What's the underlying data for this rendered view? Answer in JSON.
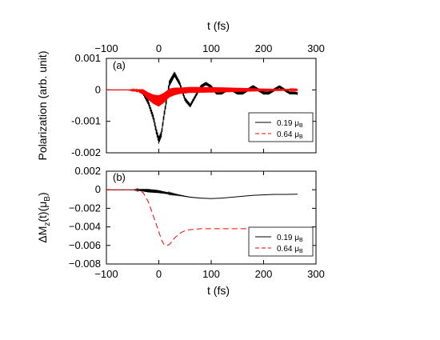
{
  "chart_data": [
    {
      "panel": "(a)",
      "type": "line",
      "xlabel": "t (fs)",
      "ylabel": "Polarization (arb. unit)",
      "xlim": [
        -100,
        300
      ],
      "ylim": [
        -0.002,
        0.001
      ],
      "x_ticks": [
        "−100",
        "0",
        "100",
        "200",
        "300"
      ],
      "x_tick_values": [
        -100,
        0,
        100,
        200,
        300
      ],
      "y_ticks": [
        "0.001",
        "0",
        "-0.001",
        "-0.002"
      ],
      "y_tick_values": [
        0.001,
        0,
        -0.001,
        -0.002
      ],
      "x_axis_position": "top",
      "legend": {
        "placement": "lower-right",
        "entries": [
          {
            "value": "0.19",
            "unit": "μ",
            "unit_sub": "B",
            "color": "#000000",
            "dash": "solid"
          },
          {
            "value": "0.64",
            "unit": "μ",
            "unit_sub": "B",
            "color": "#ff0000",
            "dash": "dashed"
          }
        ]
      },
      "series": [
        {
          "color": "#000000",
          "style": "solid",
          "envelope_center": {
            "x": [
              -100,
              -60,
              -40,
              -30,
              -20,
              -10,
              -5,
              0,
              5,
              10,
              20,
              30,
              40,
              50,
              60,
              70,
              80,
              90,
              100,
              110,
              120,
              130,
              140,
              150,
              160,
              170,
              180,
              190,
              200,
              210,
              220,
              230,
              240,
              250,
              260,
              265
            ],
            "y": [
              0,
              0,
              -2e-05,
              -0.0001,
              -0.0004,
              -0.0009,
              -0.0013,
              -0.0016,
              -0.0014,
              -0.0008,
              0.0002,
              0.0005,
              0.0002,
              -0.0003,
              -0.0005,
              -0.0002,
              0.0001,
              0.0002,
              0.0001,
              -0.0001,
              -0.0001,
              0.0,
              0.0,
              -0.0001,
              -0.0001,
              0.0,
              0.0001,
              0.0,
              -0.0001,
              -0.0001,
              0.0,
              0.0001,
              0.0,
              -0.0001,
              -0.0001,
              -0.00012
            ]
          },
          "oscillation_amplitude": {
            "x": [
              -100,
              -50,
              -40,
              -20,
              0,
              20,
              40,
              60,
              100,
              150,
              200,
              265
            ],
            "y": [
              0,
              0,
              3e-05,
              8e-05,
              0.00011,
              0.0001,
              7e-05,
              6e-05,
              5e-05,
              5e-05,
              5e-05,
              4e-05
            ]
          }
        },
        {
          "color": "#ff0000",
          "style": "dashed",
          "envelope_center": {
            "x": [
              -100,
              -60,
              -40,
              -30,
              -20,
              -10,
              0,
              10,
              20,
              30,
              40,
              60,
              80,
              100,
              130,
              160,
              200,
              240,
              265
            ],
            "y": [
              0,
              0,
              -2e-05,
              -6e-05,
              -0.0002,
              -0.0003,
              -0.00035,
              -0.00025,
              -0.0001,
              -5e-05,
              -3e-05,
              0,
              0,
              0,
              0,
              0,
              0,
              0,
              0
            ]
          },
          "oscillation_amplitude": {
            "x": [
              -100,
              -60,
              -40,
              -20,
              0,
              20,
              40,
              80,
              120,
              160,
              200,
              240,
              265
            ],
            "y": [
              0,
              0,
              4e-05,
              0.00012,
              0.00018,
              0.00014,
              0.0001,
              9e-05,
              8e-05,
              6e-05,
              4e-05,
              3e-05,
              2e-05
            ]
          }
        }
      ]
    },
    {
      "panel": "(b)",
      "type": "line",
      "xlabel": "t (fs)",
      "ylabel": {
        "prefix": "ΔM",
        "sub": "z",
        "middle": "(t)(μ",
        "sub2": "B",
        "suffix": ")"
      },
      "xlim": [
        -100,
        300
      ],
      "ylim": [
        -0.008,
        0.002
      ],
      "x_ticks": [
        "−100",
        "0",
        "100",
        "200",
        "300"
      ],
      "x_tick_values": [
        -100,
        0,
        100,
        200,
        300
      ],
      "y_ticks": [
        "0.002",
        "0",
        "−0.002",
        "−0.004",
        "−0.006",
        "−0.008"
      ],
      "y_tick_values": [
        0.002,
        0,
        -0.002,
        -0.004,
        -0.006,
        -0.008
      ],
      "x_axis_position": "bottom",
      "legend": {
        "placement": "lower-right",
        "entries": [
          {
            "value": "0.19",
            "unit": "μ",
            "unit_sub": "B",
            "color": "#000000",
            "dash": "solid"
          },
          {
            "value": "0.64",
            "unit": "μ",
            "unit_sub": "B",
            "color": "#ff0000",
            "dash": "dashed"
          }
        ]
      },
      "series": [
        {
          "color": "#000000",
          "style": "solid",
          "points": {
            "x": [
              -100,
              -60,
              -40,
              -30,
              -20,
              -10,
              0,
              10,
              20,
              40,
              60,
              80,
              100,
              120,
              140,
              160,
              180,
              200,
              220,
              240,
              265
            ],
            "y": [
              0,
              0,
              -2e-05,
              -5e-05,
              -0.0001,
              -0.00015,
              -0.0002,
              -0.0003,
              -0.0004,
              -0.0006,
              -0.0008,
              -0.0009,
              -0.00095,
              -0.0009,
              -0.0008,
              -0.0007,
              -0.0006,
              -0.00055,
              -0.0005,
              -0.0005,
              -0.00048
            ]
          },
          "oscillation_amplitude": {
            "x": [
              -100,
              -50,
              -40,
              -20,
              0,
              20,
              40,
              60,
              100,
              265
            ],
            "y": [
              0,
              0,
              8e-05,
              0.00018,
              0.00015,
              8e-05,
              3e-05,
              1e-05,
              0,
              0
            ]
          }
        },
        {
          "color": "#ff0000",
          "style": "dashed",
          "points": {
            "x": [
              -100,
              -50,
              -40,
              -30,
              -20,
              -10,
              0,
              5,
              10,
              15,
              20,
              25,
              30,
              40,
              50,
              60,
              80,
              100,
              120,
              150,
              200,
              265
            ],
            "y": [
              0,
              0,
              -5e-05,
              -0.0003,
              -0.0013,
              -0.0029,
              -0.0045,
              -0.0054,
              -0.0059,
              -0.006,
              -0.0059,
              -0.0056,
              -0.0052,
              -0.0047,
              -0.0044,
              -0.0043,
              -0.0042,
              -0.0042,
              -0.0042,
              -0.0042,
              -0.0042,
              -0.0042
            ]
          }
        }
      ]
    }
  ]
}
